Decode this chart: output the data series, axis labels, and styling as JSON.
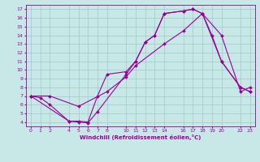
{
  "xlabel": "Windchill (Refroidissement éolien,°C)",
  "bg_color": "#c8e8e8",
  "line_color": "#990099",
  "grid_color": "#a0c8c8",
  "line1_x": [
    0,
    1,
    2,
    4,
    5,
    6,
    7,
    8,
    10,
    11,
    12,
    13,
    14,
    16,
    17,
    18,
    19,
    20,
    22,
    23
  ],
  "line1_y": [
    7.0,
    6.8,
    6.0,
    4.1,
    4.1,
    4.0,
    7.0,
    9.5,
    9.8,
    11.0,
    13.2,
    14.0,
    16.5,
    16.8,
    17.0,
    16.5,
    14.0,
    11.0,
    8.0,
    7.5
  ],
  "line2_x": [
    0,
    4,
    5,
    6,
    7,
    10,
    11,
    12,
    13,
    14,
    16,
    17,
    18,
    20,
    22,
    23
  ],
  "line2_y": [
    7.0,
    4.1,
    4.0,
    3.9,
    5.2,
    9.5,
    11.0,
    13.2,
    14.0,
    16.5,
    16.8,
    17.0,
    16.5,
    11.0,
    8.0,
    7.5
  ],
  "line3_x": [
    0,
    2,
    5,
    8,
    10,
    11,
    14,
    16,
    18,
    20,
    22,
    23
  ],
  "line3_y": [
    7.0,
    7.0,
    5.8,
    7.5,
    9.2,
    10.5,
    13.0,
    14.5,
    16.5,
    14.0,
    7.5,
    8.0
  ],
  "xlim": [
    -0.5,
    23.5
  ],
  "ylim": [
    3.5,
    17.5
  ],
  "yticks": [
    4,
    5,
    6,
    7,
    8,
    9,
    10,
    11,
    12,
    13,
    14,
    15,
    16,
    17
  ],
  "xticks": [
    0,
    1,
    2,
    4,
    5,
    6,
    7,
    8,
    10,
    11,
    12,
    13,
    14,
    16,
    17,
    18,
    19,
    20,
    22,
    23
  ],
  "tick_fontsize": 4.5,
  "xlabel_fontsize": 5.0,
  "marker_size": 2.0,
  "line_width": 0.8
}
